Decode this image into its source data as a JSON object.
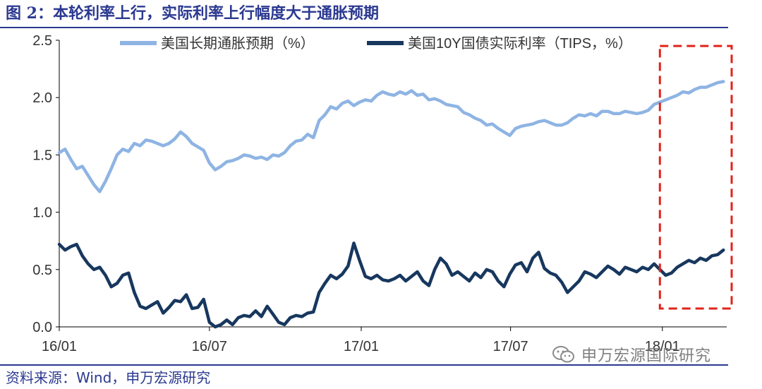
{
  "figure": {
    "title": "图 2：本轮利率上行，实际利率上行幅度大于通胀预期",
    "source": "资料来源：Wind，申万宏源研究",
    "watermark": "申万宏源国际研究"
  },
  "colors": {
    "frame": "#2B3990",
    "text": "#2B3990",
    "inflation": "#8EB4E3",
    "real": "#17375E",
    "highlight": "#E2231A",
    "axis": "#000000",
    "tick_text": "#333333"
  },
  "chart_data": {
    "type": "line",
    "title": "",
    "xlabel": "",
    "ylabel": "",
    "ylim": [
      0.0,
      2.5
    ],
    "yticks": [
      "0.0",
      "0.5",
      "1.0",
      "1.5",
      "2.0",
      "2.5"
    ],
    "xlim": [
      "2016-01-01",
      "2018-03-20"
    ],
    "xticks": [
      {
        "date": "2016-01-01",
        "label": "16/01"
      },
      {
        "date": "2016-07-01",
        "label": "16/07"
      },
      {
        "date": "2017-01-01",
        "label": "17/01"
      },
      {
        "date": "2017-07-01",
        "label": "17/07"
      },
      {
        "date": "2018-01-01",
        "label": "18/01"
      }
    ],
    "legend_position": "top",
    "grid": false,
    "series": [
      {
        "name": "美国长期通胀预期（%）",
        "color": "#8EB4E3",
        "points": [
          [
            "2016-01-01",
            1.52
          ],
          [
            "2016-01-08",
            1.55
          ],
          [
            "2016-01-15",
            1.46
          ],
          [
            "2016-01-22",
            1.38
          ],
          [
            "2016-01-29",
            1.4
          ],
          [
            "2016-02-05",
            1.32
          ],
          [
            "2016-02-12",
            1.24
          ],
          [
            "2016-02-19",
            1.18
          ],
          [
            "2016-02-26",
            1.27
          ],
          [
            "2016-03-04",
            1.38
          ],
          [
            "2016-03-11",
            1.5
          ],
          [
            "2016-03-18",
            1.55
          ],
          [
            "2016-03-25",
            1.53
          ],
          [
            "2016-04-01",
            1.6
          ],
          [
            "2016-04-08",
            1.58
          ],
          [
            "2016-04-15",
            1.63
          ],
          [
            "2016-04-22",
            1.62
          ],
          [
            "2016-04-29",
            1.6
          ],
          [
            "2016-05-06",
            1.58
          ],
          [
            "2016-05-13",
            1.6
          ],
          [
            "2016-05-20",
            1.64
          ],
          [
            "2016-05-27",
            1.7
          ],
          [
            "2016-06-03",
            1.66
          ],
          [
            "2016-06-10",
            1.6
          ],
          [
            "2016-06-17",
            1.57
          ],
          [
            "2016-06-24",
            1.54
          ],
          [
            "2016-07-01",
            1.43
          ],
          [
            "2016-07-08",
            1.37
          ],
          [
            "2016-07-15",
            1.4
          ],
          [
            "2016-07-22",
            1.44
          ],
          [
            "2016-07-29",
            1.45
          ],
          [
            "2016-08-05",
            1.47
          ],
          [
            "2016-08-12",
            1.5
          ],
          [
            "2016-08-19",
            1.49
          ],
          [
            "2016-08-26",
            1.47
          ],
          [
            "2016-09-02",
            1.48
          ],
          [
            "2016-09-09",
            1.46
          ],
          [
            "2016-09-16",
            1.5
          ],
          [
            "2016-09-23",
            1.49
          ],
          [
            "2016-09-30",
            1.52
          ],
          [
            "2016-10-07",
            1.58
          ],
          [
            "2016-10-14",
            1.62
          ],
          [
            "2016-10-21",
            1.63
          ],
          [
            "2016-10-28",
            1.68
          ],
          [
            "2016-11-04",
            1.65
          ],
          [
            "2016-11-11",
            1.8
          ],
          [
            "2016-11-18",
            1.85
          ],
          [
            "2016-11-25",
            1.92
          ],
          [
            "2016-12-02",
            1.9
          ],
          [
            "2016-12-09",
            1.95
          ],
          [
            "2016-12-16",
            1.97
          ],
          [
            "2016-12-23",
            1.93
          ],
          [
            "2016-12-30",
            1.96
          ],
          [
            "2017-01-06",
            1.98
          ],
          [
            "2017-01-13",
            1.97
          ],
          [
            "2017-01-20",
            2.02
          ],
          [
            "2017-01-27",
            2.05
          ],
          [
            "2017-02-03",
            2.03
          ],
          [
            "2017-02-10",
            2.02
          ],
          [
            "2017-02-17",
            2.05
          ],
          [
            "2017-02-24",
            2.03
          ],
          [
            "2017-03-03",
            2.06
          ],
          [
            "2017-03-10",
            2.02
          ],
          [
            "2017-03-17",
            2.03
          ],
          [
            "2017-03-24",
            1.98
          ],
          [
            "2017-03-31",
            1.99
          ],
          [
            "2017-04-07",
            1.97
          ],
          [
            "2017-04-14",
            1.94
          ],
          [
            "2017-04-21",
            1.93
          ],
          [
            "2017-04-28",
            1.92
          ],
          [
            "2017-05-05",
            1.87
          ],
          [
            "2017-05-12",
            1.85
          ],
          [
            "2017-05-19",
            1.82
          ],
          [
            "2017-05-26",
            1.8
          ],
          [
            "2017-06-02",
            1.76
          ],
          [
            "2017-06-09",
            1.77
          ],
          [
            "2017-06-16",
            1.73
          ],
          [
            "2017-06-23",
            1.7
          ],
          [
            "2017-06-30",
            1.67
          ],
          [
            "2017-07-07",
            1.73
          ],
          [
            "2017-07-14",
            1.75
          ],
          [
            "2017-07-21",
            1.76
          ],
          [
            "2017-07-28",
            1.77
          ],
          [
            "2017-08-04",
            1.79
          ],
          [
            "2017-08-11",
            1.8
          ],
          [
            "2017-08-18",
            1.78
          ],
          [
            "2017-08-25",
            1.76
          ],
          [
            "2017-09-01",
            1.76
          ],
          [
            "2017-09-08",
            1.78
          ],
          [
            "2017-09-15",
            1.82
          ],
          [
            "2017-09-22",
            1.85
          ],
          [
            "2017-09-29",
            1.84
          ],
          [
            "2017-10-06",
            1.86
          ],
          [
            "2017-10-13",
            1.84
          ],
          [
            "2017-10-20",
            1.88
          ],
          [
            "2017-10-27",
            1.88
          ],
          [
            "2017-11-03",
            1.86
          ],
          [
            "2017-11-10",
            1.86
          ],
          [
            "2017-11-17",
            1.88
          ],
          [
            "2017-11-24",
            1.87
          ],
          [
            "2017-12-01",
            1.86
          ],
          [
            "2017-12-08",
            1.87
          ],
          [
            "2017-12-15",
            1.89
          ],
          [
            "2017-12-22",
            1.94
          ],
          [
            "2017-12-29",
            1.96
          ],
          [
            "2018-01-05",
            1.98
          ],
          [
            "2018-01-12",
            2.0
          ],
          [
            "2018-01-19",
            2.02
          ],
          [
            "2018-01-26",
            2.05
          ],
          [
            "2018-02-02",
            2.04
          ],
          [
            "2018-02-09",
            2.07
          ],
          [
            "2018-02-16",
            2.09
          ],
          [
            "2018-02-23",
            2.09
          ],
          [
            "2018-03-02",
            2.11
          ],
          [
            "2018-03-09",
            2.13
          ],
          [
            "2018-03-16",
            2.14
          ]
        ]
      },
      {
        "name": "美国10Y国债实际利率（TIPS，%）",
        "color": "#17375E",
        "points": [
          [
            "2016-01-01",
            0.72
          ],
          [
            "2016-01-08",
            0.67
          ],
          [
            "2016-01-15",
            0.7
          ],
          [
            "2016-01-22",
            0.72
          ],
          [
            "2016-01-29",
            0.62
          ],
          [
            "2016-02-05",
            0.55
          ],
          [
            "2016-02-12",
            0.5
          ],
          [
            "2016-02-19",
            0.52
          ],
          [
            "2016-02-26",
            0.45
          ],
          [
            "2016-03-04",
            0.35
          ],
          [
            "2016-03-11",
            0.38
          ],
          [
            "2016-03-18",
            0.45
          ],
          [
            "2016-03-25",
            0.47
          ],
          [
            "2016-04-01",
            0.3
          ],
          [
            "2016-04-08",
            0.18
          ],
          [
            "2016-04-15",
            0.16
          ],
          [
            "2016-04-22",
            0.19
          ],
          [
            "2016-04-29",
            0.22
          ],
          [
            "2016-05-06",
            0.12
          ],
          [
            "2016-05-13",
            0.17
          ],
          [
            "2016-05-20",
            0.23
          ],
          [
            "2016-05-27",
            0.22
          ],
          [
            "2016-06-03",
            0.28
          ],
          [
            "2016-06-10",
            0.16
          ],
          [
            "2016-06-17",
            0.17
          ],
          [
            "2016-06-24",
            0.24
          ],
          [
            "2016-07-01",
            0.04
          ],
          [
            "2016-07-08",
            0.0
          ],
          [
            "2016-07-15",
            0.02
          ],
          [
            "2016-07-22",
            0.06
          ],
          [
            "2016-07-29",
            0.02
          ],
          [
            "2016-08-05",
            0.08
          ],
          [
            "2016-08-12",
            0.1
          ],
          [
            "2016-08-19",
            0.09
          ],
          [
            "2016-08-26",
            0.14
          ],
          [
            "2016-09-02",
            0.09
          ],
          [
            "2016-09-09",
            0.18
          ],
          [
            "2016-09-16",
            0.11
          ],
          [
            "2016-09-23",
            0.04
          ],
          [
            "2016-09-30",
            0.02
          ],
          [
            "2016-10-07",
            0.08
          ],
          [
            "2016-10-14",
            0.1
          ],
          [
            "2016-10-21",
            0.09
          ],
          [
            "2016-10-28",
            0.12
          ],
          [
            "2016-11-04",
            0.13
          ],
          [
            "2016-11-11",
            0.3
          ],
          [
            "2016-11-18",
            0.38
          ],
          [
            "2016-11-25",
            0.45
          ],
          [
            "2016-12-02",
            0.42
          ],
          [
            "2016-12-09",
            0.46
          ],
          [
            "2016-12-16",
            0.53
          ],
          [
            "2016-12-23",
            0.73
          ],
          [
            "2016-12-30",
            0.58
          ],
          [
            "2017-01-06",
            0.44
          ],
          [
            "2017-01-13",
            0.42
          ],
          [
            "2017-01-20",
            0.45
          ],
          [
            "2017-01-27",
            0.41
          ],
          [
            "2017-02-03",
            0.4
          ],
          [
            "2017-02-10",
            0.42
          ],
          [
            "2017-02-17",
            0.45
          ],
          [
            "2017-02-24",
            0.4
          ],
          [
            "2017-03-03",
            0.44
          ],
          [
            "2017-03-10",
            0.48
          ],
          [
            "2017-03-17",
            0.4
          ],
          [
            "2017-03-24",
            0.36
          ],
          [
            "2017-03-31",
            0.5
          ],
          [
            "2017-04-07",
            0.6
          ],
          [
            "2017-04-14",
            0.55
          ],
          [
            "2017-04-21",
            0.45
          ],
          [
            "2017-04-28",
            0.48
          ],
          [
            "2017-05-05",
            0.44
          ],
          [
            "2017-05-12",
            0.4
          ],
          [
            "2017-05-19",
            0.47
          ],
          [
            "2017-05-26",
            0.43
          ],
          [
            "2017-06-02",
            0.5
          ],
          [
            "2017-06-09",
            0.48
          ],
          [
            "2017-06-16",
            0.4
          ],
          [
            "2017-06-23",
            0.35
          ],
          [
            "2017-06-30",
            0.46
          ],
          [
            "2017-07-07",
            0.54
          ],
          [
            "2017-07-14",
            0.56
          ],
          [
            "2017-07-21",
            0.48
          ],
          [
            "2017-07-28",
            0.6
          ],
          [
            "2017-08-04",
            0.65
          ],
          [
            "2017-08-11",
            0.51
          ],
          [
            "2017-08-18",
            0.47
          ],
          [
            "2017-08-25",
            0.45
          ],
          [
            "2017-09-01",
            0.39
          ],
          [
            "2017-09-08",
            0.3
          ],
          [
            "2017-09-15",
            0.35
          ],
          [
            "2017-09-22",
            0.4
          ],
          [
            "2017-09-29",
            0.48
          ],
          [
            "2017-10-06",
            0.46
          ],
          [
            "2017-10-13",
            0.43
          ],
          [
            "2017-10-20",
            0.48
          ],
          [
            "2017-10-27",
            0.53
          ],
          [
            "2017-11-03",
            0.5
          ],
          [
            "2017-11-10",
            0.46
          ],
          [
            "2017-11-17",
            0.52
          ],
          [
            "2017-11-24",
            0.5
          ],
          [
            "2017-12-01",
            0.48
          ],
          [
            "2017-12-08",
            0.52
          ],
          [
            "2017-12-15",
            0.5
          ],
          [
            "2017-12-22",
            0.55
          ],
          [
            "2017-12-29",
            0.5
          ],
          [
            "2018-01-05",
            0.45
          ],
          [
            "2018-01-12",
            0.47
          ],
          [
            "2018-01-19",
            0.52
          ],
          [
            "2018-01-26",
            0.55
          ],
          [
            "2018-02-02",
            0.58
          ],
          [
            "2018-02-09",
            0.56
          ],
          [
            "2018-02-16",
            0.6
          ],
          [
            "2018-02-23",
            0.58
          ],
          [
            "2018-03-02",
            0.62
          ],
          [
            "2018-03-09",
            0.63
          ],
          [
            "2018-03-16",
            0.67
          ]
        ]
      }
    ],
    "highlight": {
      "from": "2017-12-29",
      "to": "2018-03-26",
      "ymin": 0.16,
      "ymax": 2.45,
      "style": "red dashed box"
    }
  }
}
